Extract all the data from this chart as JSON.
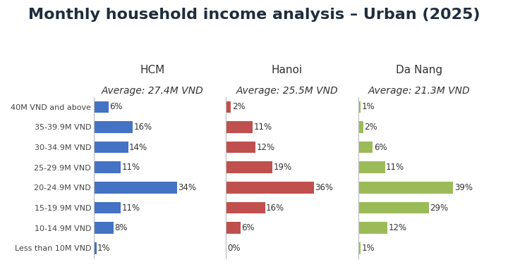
{
  "title": "Monthly household income analysis – Urban (2025)",
  "categories": [
    "40M VND and above",
    "35-39.9M VND",
    "30-34.9M VND",
    "25-29.9M VND",
    "20-24.9M VND",
    "15-19.9M VND",
    "10-14.9M VND",
    "Less than 10M VND"
  ],
  "cities": [
    "HCM",
    "Hanoi",
    "Da Nang"
  ],
  "averages": [
    "Average: 27.4M VND",
    "Average: 25.5M VND",
    "Average: 21.3M VND"
  ],
  "hcm_values": [
    6,
    16,
    14,
    11,
    34,
    11,
    8,
    1
  ],
  "hanoi_values": [
    2,
    11,
    12,
    19,
    36,
    16,
    6,
    0
  ],
  "danang_values": [
    1,
    2,
    6,
    11,
    39,
    29,
    12,
    1
  ],
  "hcm_color": "#4472C4",
  "hanoi_color": "#C0504D",
  "danang_color": "#9BBB59",
  "background_color": "#FFFFFF",
  "title_fontsize": 16,
  "city_fontsize": 11,
  "avg_fontsize": 10,
  "bar_label_fontsize": 8.5,
  "cat_label_fontsize": 8
}
